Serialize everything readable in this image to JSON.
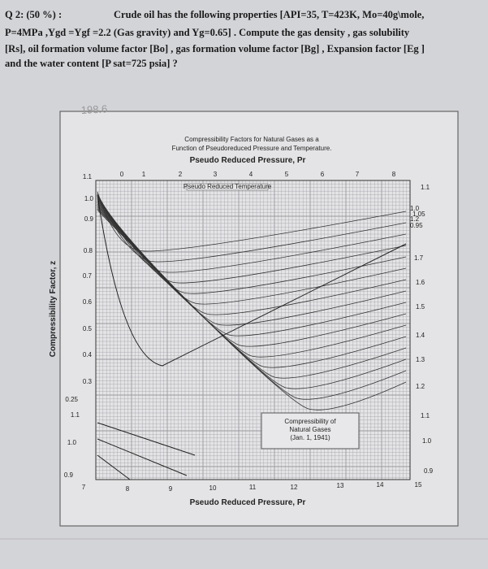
{
  "question": {
    "label": "Q 2: (50 %) :",
    "lines": [
      "Crude oil has the following properties [API=35, T=423K, Mo=40g\\mole,",
      "P=4MPa ,Ygd =Ygf =2.2 (Gas gravity) and Yg=0.65] . Compute the gas density , gas solubility",
      "[Rs], oil formation volume factor [Bo] , gas formation volume factor [Bg] , Expansion factor [Eg ]",
      "and the water content [P sat=725 psia] ?"
    ]
  },
  "handwritten": "198.6",
  "figure": {
    "title_lines": [
      "Compressibility Factors for Natural Gases as a",
      "Function of Pseudoreduced Pressure and Temperature."
    ],
    "top_axis_label": "Pseudo Reduced Pressure, Pr",
    "top_ticks": [
      "0",
      "1",
      "2",
      "3",
      "4",
      "5",
      "6",
      "7",
      "8"
    ],
    "inner_label": "Pseudo Reduced Temperature",
    "y_axis_label": "Compressibility Factor, z",
    "left_labels": [
      "1.1",
      "1.0",
      "0.9",
      "0.8",
      "0.7",
      "0.6",
      "0.5",
      "0.4",
      "0.3",
      "0.25",
      "1.1",
      "1.0",
      "0.9"
    ],
    "right_labels": [
      "1.1",
      "1.0",
      "1.05",
      "1.2",
      "0.95",
      "1.7",
      "1.6",
      "1.5",
      "1.4",
      "1.3",
      "1.2",
      "1.1",
      "1.0",
      "0.9"
    ],
    "bottom_ticks": [
      "7",
      "8",
      "9",
      "10",
      "11",
      "12",
      "13",
      "14",
      "15"
    ],
    "bottom_axis_label": "Pseudo Reduced Pressure, Pr",
    "legend_lines": [
      "Compressibility of",
      "Natural Gases",
      "(Jan. 1, 1941)"
    ]
  }
}
